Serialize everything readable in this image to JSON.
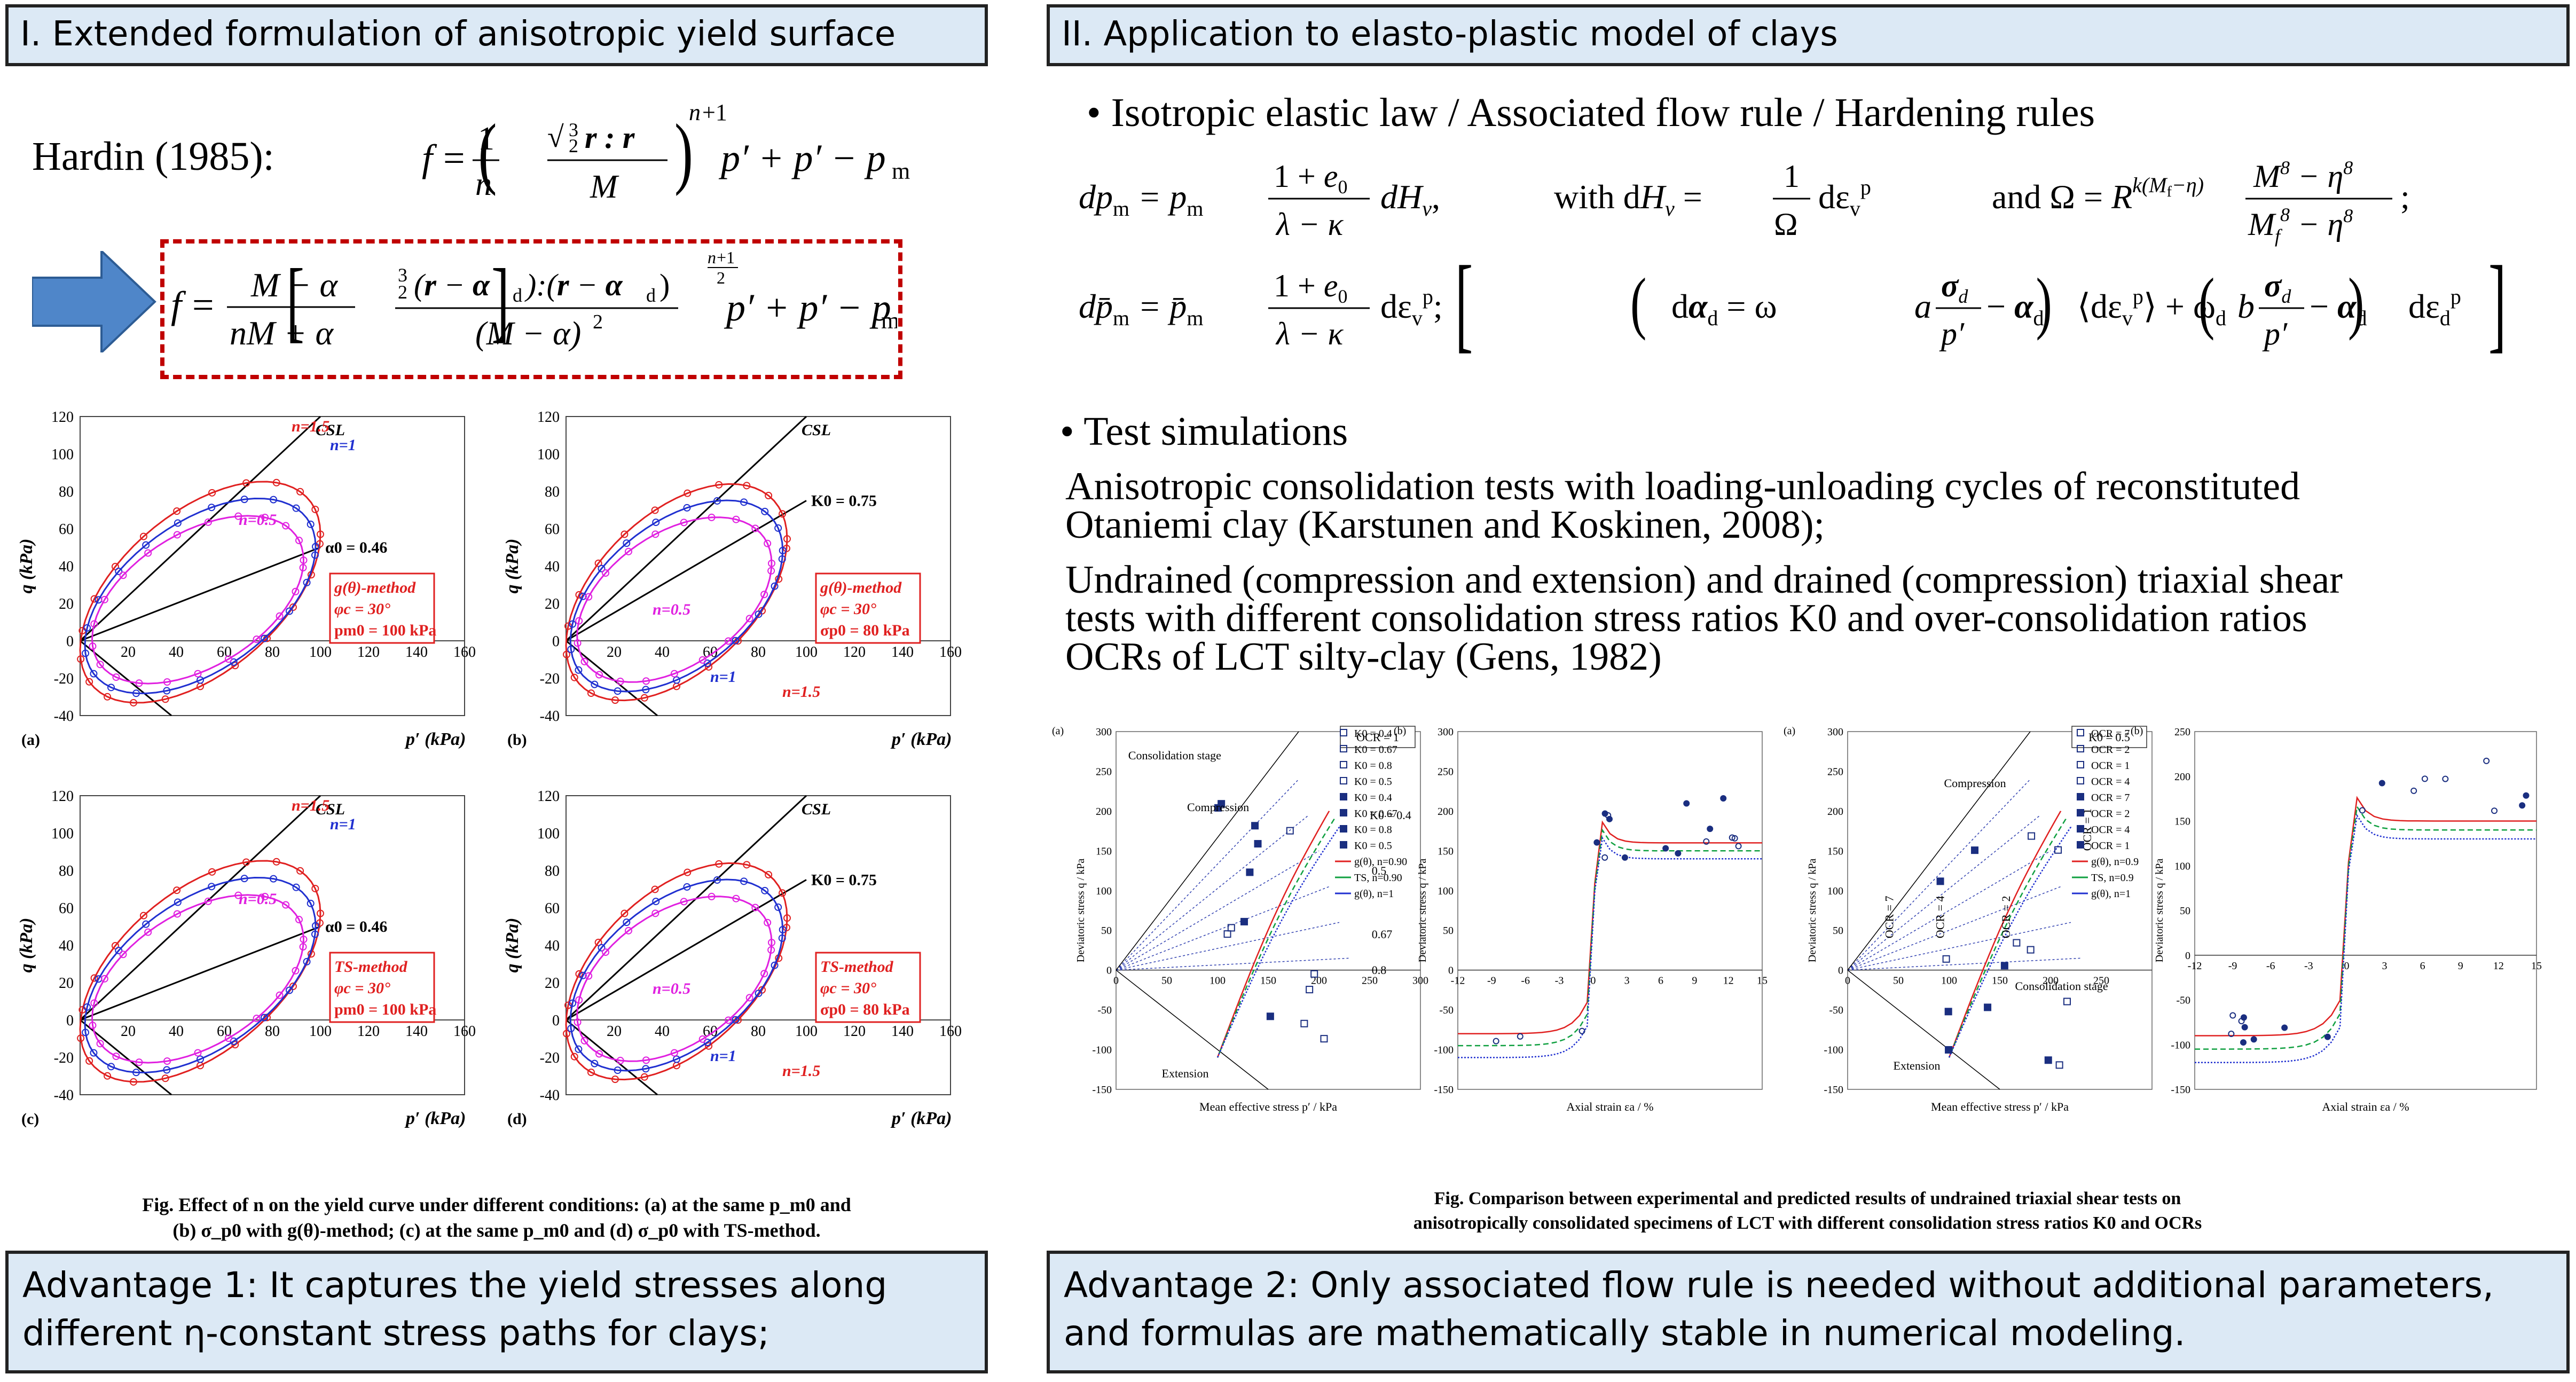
{
  "left": {
    "header": "I. Extended formulation of anisotropic yield surface",
    "hardin_label": "Hardin (1985):",
    "eq1": "f = (1/n)(√(3/2 r:r) / M)^(n+1) p′ + p′ − p_m",
    "eq2": "f = (M−α)/(nM+α) [ 3/2 (r−α_d):(r−α_d) / (M−α)² ]^((n+1)/2) p′ + p′ − p_m",
    "caption_line1": "Fig. Effect of n on the yield curve under different conditions: (a) at the same p_m0 and",
    "caption_line2": "(b) σ_p0 with g(θ)-method; (c) at the same p_m0 and (d) σ_p0 with TS-method.",
    "advantage": "Advantage 1: It captures the yield stresses along different η-constant stress paths for clays;"
  },
  "right": {
    "header": "II. Application to elasto-plastic model of clays",
    "bullet1": "• Isotropic elastic law / Associated flow rule / Hardening rules",
    "eqA": "dp_m = p_m (1+e0)/(λ−κ) dH_v,     with  dH_v = (1/Ω) dε_v^p     and  Ω = R^(k(M_f−η)) (M^8−η^8)/(M_f^8−η^8);",
    "eqB": "dp̄_m = p̄_m (1+e0)/(λ−κ) dε_v^p;     dα_d = ω[(a σ_d/p′ − α_d)⟨dε_v^p⟩ + ω_d(b σ_d/p′ − α_d) dε_d^p]",
    "bullet2": "• Test simulations",
    "para1_l1": "Anisotropic consolidation tests with loading-unloading cycles of reconstituted",
    "para1_l2": "Otaniemi clay (Karstunen and Koskinen, 2008);",
    "para2_l1": "Undrained (compression and extension) and drained (compression) triaxial shear",
    "para2_l2": "tests with different consolidation stress ratios K0 and over-consolidation ratios",
    "para2_l3": "OCRs of LCT silty-clay (Gens, 1982)",
    "caption_line1": "Fig. Comparison between experimental and predicted results of undrained triaxial shear tests on",
    "caption_line2": "anisotropically consolidated specimens of LCT with different consolidation stress ratios K0 and OCRs",
    "advantage_l1": "Advantage 2: Only associated flow rule is needed without additional parameters,",
    "advantage_l2": "and formulas are mathematically stable in numerical modeling."
  },
  "yield_panels": [
    {
      "id": "(a)",
      "method": "g(θ)-method",
      "phi": "φc = 30°",
      "p0": "pm0 = 100 kPa",
      "line_label": "α0 = 0.46"
    },
    {
      "id": "(b)",
      "method": "g(θ)-method",
      "phi": "φc = 30°",
      "p0": "σp0 = 80 kPa",
      "line_label": "K0 = 0.75"
    },
    {
      "id": "(c)",
      "method": "TS-method",
      "phi": "φc = 30°",
      "p0": "pm0 = 100 kPa",
      "line_label": "α0 = 0.46"
    },
    {
      "id": "(d)",
      "method": "TS-method",
      "phi": "φc = 30°",
      "p0": "σp0 = 80 kPa",
      "line_label": "K0 = 0.75"
    }
  ],
  "chart_data": [
    {
      "type": "line",
      "panel": "(a)",
      "xlabel": "p′ (kPa)",
      "ylabel": "q (kPa)",
      "xlim": [
        0,
        160
      ],
      "ylim": [
        -40,
        120
      ],
      "xticks": [
        0,
        20,
        40,
        60,
        80,
        100,
        120,
        140,
        160
      ],
      "yticks": [
        -40,
        -20,
        0,
        20,
        40,
        60,
        80,
        100,
        120
      ],
      "series": [
        {
          "name": "n=1.5",
          "color": "#e02020"
        },
        {
          "name": "n=1",
          "color": "#2030d0"
        },
        {
          "name": "n=0.5",
          "color": "#e020e0"
        }
      ],
      "annotations": [
        "CSL",
        "α0 = 0.46"
      ]
    },
    {
      "type": "line",
      "panel": "(b)",
      "xlabel": "p′ (kPa)",
      "ylabel": "q (kPa)",
      "xlim": [
        0,
        160
      ],
      "ylim": [
        -40,
        120
      ],
      "xticks": [
        0,
        20,
        40,
        60,
        80,
        100,
        120,
        140,
        160
      ],
      "yticks": [
        -40,
        -20,
        0,
        20,
        40,
        60,
        80,
        100,
        120
      ],
      "series": [
        {
          "name": "n=1.5",
          "color": "#e02020"
        },
        {
          "name": "n=1",
          "color": "#2030d0"
        },
        {
          "name": "n=0.5",
          "color": "#e020e0"
        }
      ],
      "annotations": [
        "CSL",
        "K0 = 0.75"
      ]
    },
    {
      "type": "line",
      "panel": "(c)",
      "xlabel": "p′ (kPa)",
      "ylabel": "q (kPa)",
      "xlim": [
        0,
        160
      ],
      "ylim": [
        -40,
        120
      ],
      "xticks": [
        0,
        20,
        40,
        60,
        80,
        100,
        120,
        140,
        160
      ],
      "yticks": [
        -40,
        -20,
        0,
        20,
        40,
        60,
        80,
        100,
        120
      ],
      "series": [
        {
          "name": "n=1.5",
          "color": "#e02020"
        },
        {
          "name": "n=1",
          "color": "#2030d0"
        },
        {
          "name": "n=0.5",
          "color": "#e020e0"
        }
      ],
      "annotations": [
        "CSL",
        "α0 = 0.46"
      ]
    },
    {
      "type": "line",
      "panel": "(d)",
      "xlabel": "p′ (kPa)",
      "ylabel": "q (kPa)",
      "xlim": [
        0,
        160
      ],
      "ylim": [
        -40,
        120
      ],
      "xticks": [
        0,
        20,
        40,
        60,
        80,
        100,
        120,
        140,
        160
      ],
      "yticks": [
        -40,
        -20,
        0,
        20,
        40,
        60,
        80,
        100,
        120
      ],
      "series": [
        {
          "name": "n=1.5",
          "color": "#e02020"
        },
        {
          "name": "n=1",
          "color": "#2030d0"
        },
        {
          "name": "n=0.5",
          "color": "#e020e0"
        }
      ],
      "annotations": [
        "CSL",
        "K0 = 0.75"
      ]
    },
    {
      "type": "line",
      "panel": "(a)",
      "title_box": "OCR = 1",
      "xlabel": "Mean effective stress p′ / kPa",
      "ylabel": "Deviatoric stress q / kPa",
      "xlim": [
        0,
        300
      ],
      "ylim": [
        -150,
        300
      ],
      "xticks": [
        0,
        50,
        100,
        150,
        200,
        250,
        300
      ],
      "yticks": [
        -150,
        -100,
        -50,
        0,
        50,
        100,
        150,
        200,
        250,
        300
      ],
      "annotations": [
        "Consolidation stage",
        "Compression",
        "Extension",
        "K0 = 0.4",
        "0.5",
        "0.67",
        "0.8"
      ]
    },
    {
      "type": "line",
      "panel": "(b)",
      "xlabel": "Axial strain εa / %",
      "ylabel": "Deviatoric stress q / kPa",
      "xlim": [
        -12,
        15
      ],
      "ylim": [
        -150,
        300
      ],
      "xticks": [
        -12,
        -9,
        -6,
        -3,
        0,
        3,
        6,
        9,
        12,
        15
      ],
      "yticks": [
        -150,
        -100,
        -50,
        0,
        50,
        100,
        150,
        200,
        250,
        300
      ],
      "legend": [
        "K0 = 0.4",
        "K0 = 0.67",
        "K0 = 0.8",
        "K0 = 0.5",
        "K0 = 0.4",
        "K0 = 0.67",
        "K0 = 0.8",
        "K0 = 0.5",
        "g(θ), n=0.90",
        "TS, n=0.90",
        "g(θ), n=1"
      ]
    },
    {
      "type": "line",
      "panel": "(a)",
      "title_box": "K0 = 0.5",
      "xlabel": "Mean effective stress p′ / kPa",
      "ylabel": "Deviatoric stress q / kPa",
      "xlim": [
        0,
        300
      ],
      "ylim": [
        -150,
        300
      ],
      "xticks": [
        0,
        50,
        100,
        150,
        200,
        250
      ],
      "yticks": [
        -150,
        -100,
        -50,
        0,
        50,
        100,
        150,
        200,
        250,
        300
      ],
      "annotations": [
        "Compression",
        "Extension",
        "Consolidation stage",
        "OCR = 7",
        "OCR = 4",
        "OCR = 2",
        "OCR = 1"
      ]
    },
    {
      "type": "line",
      "panel": "(b)",
      "xlabel": "Axial strain εa / %",
      "ylabel": "Deviatoric stress q / kPa",
      "xlim": [
        -12,
        15
      ],
      "ylim": [
        -150,
        250
      ],
      "xticks": [
        -12,
        -9,
        -6,
        -3,
        0,
        3,
        6,
        9,
        12,
        15
      ],
      "yticks": [
        -150,
        -100,
        -50,
        0,
        50,
        100,
        150,
        200,
        250
      ],
      "legend": [
        "OCR = 7",
        "OCR = 2",
        "OCR = 1",
        "OCR = 4",
        "OCR = 7",
        "OCR = 2",
        "OCR = 4",
        "OCR = 1",
        "g(θ), n=0.9",
        "TS, n=0.9",
        "g(θ), n=1"
      ]
    }
  ]
}
